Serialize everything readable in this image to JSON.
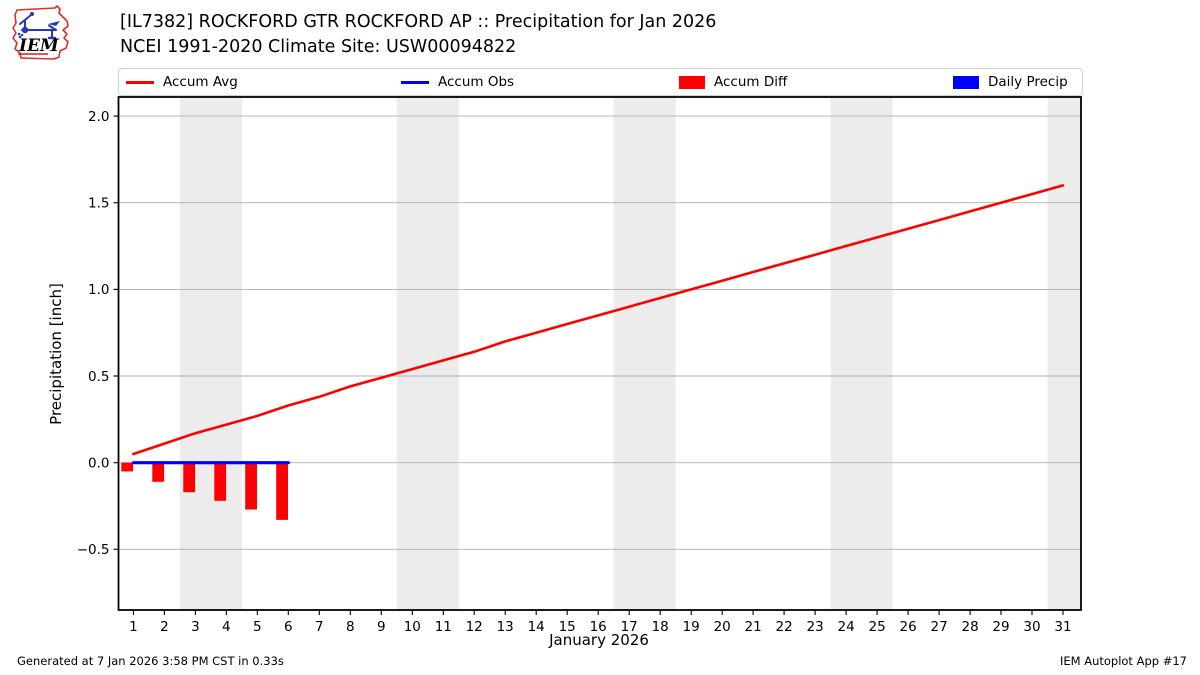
{
  "header": {
    "title": "[IL7382] ROCKFORD GTR ROCKFORD AP :: Precipitation for Jan 2026",
    "subtitle": "NCEI 1991-2020 Climate Site: USW00094822",
    "logo_text": "IEM"
  },
  "legend": {
    "items": [
      {
        "label": "Accum Avg",
        "swatch": "line",
        "color": "#ff0000"
      },
      {
        "label": "Accum Obs",
        "swatch": "line",
        "color": "#0000ff"
      },
      {
        "label": "Accum Diff",
        "swatch": "box",
        "color": "#ff0000"
      },
      {
        "label": "Daily Precip",
        "swatch": "box",
        "color": "#0000ff"
      }
    ]
  },
  "chart_data": {
    "type": "line+bar",
    "xlabel": "January 2026",
    "ylabel": "Precipitation [inch]",
    "xlim": [
      0.52,
      31.58
    ],
    "ylim": [
      -0.85,
      2.11
    ],
    "x_ticks": [
      1,
      2,
      3,
      4,
      5,
      6,
      7,
      8,
      9,
      10,
      11,
      12,
      13,
      14,
      15,
      16,
      17,
      18,
      19,
      20,
      21,
      22,
      23,
      24,
      25,
      26,
      27,
      28,
      29,
      30,
      31
    ],
    "y_ticks": [
      2.0,
      1.5,
      1.0,
      0.5,
      0.0,
      -0.5
    ],
    "y_tick_labels": [
      "2.0",
      "1.5",
      "1.0",
      "0.5",
      "0.0",
      "−0.5"
    ],
    "grid": "horizontal",
    "grid_color": "#b0b0b0",
    "band_color": "#ececec",
    "weekend_bands": [
      [
        2.5,
        4.5
      ],
      [
        9.5,
        11.5
      ],
      [
        16.5,
        18.5
      ],
      [
        23.5,
        25.5
      ],
      [
        30.5,
        31.58
      ]
    ],
    "series": [
      {
        "name": "Accum Avg",
        "type": "line",
        "color": "#ff0000",
        "line_width": 2.6,
        "x": [
          1,
          2,
          3,
          4,
          5,
          6,
          7,
          8,
          9,
          10,
          11,
          12,
          13,
          14,
          15,
          16,
          17,
          18,
          19,
          20,
          21,
          22,
          23,
          24,
          25,
          26,
          27,
          28,
          29,
          30,
          31
        ],
        "values": [
          0.05,
          0.11,
          0.17,
          0.22,
          0.27,
          0.33,
          0.38,
          0.44,
          0.49,
          0.54,
          0.59,
          0.64,
          0.7,
          0.75,
          0.8,
          0.85,
          0.9,
          0.95,
          1.0,
          1.05,
          1.1,
          1.15,
          1.2,
          1.25,
          1.3,
          1.35,
          1.4,
          1.45,
          1.5,
          1.55,
          1.6
        ]
      },
      {
        "name": "Accum Obs",
        "type": "line",
        "color": "#0000ff",
        "line_width": 3.2,
        "x": [
          1,
          2,
          3,
          4,
          5,
          6
        ],
        "values": [
          0,
          0,
          0,
          0,
          0,
          0
        ]
      },
      {
        "name": "Accum Diff",
        "type": "bar",
        "color": "#ff0000",
        "bar_offset": -0.2,
        "bar_width": 0.38,
        "x": [
          1,
          2,
          3,
          4,
          5,
          6
        ],
        "values": [
          -0.05,
          -0.11,
          -0.17,
          -0.22,
          -0.27,
          -0.33
        ]
      },
      {
        "name": "Daily Precip",
        "type": "bar",
        "color": "#0000ff",
        "bar_offset": 0.2,
        "bar_width": 0.38,
        "x": [
          1,
          2,
          3,
          4,
          5,
          6
        ],
        "values": [
          0,
          0,
          0,
          0,
          0,
          0
        ]
      }
    ]
  },
  "footer": {
    "generated": "Generated at 7 Jan 2026 3:58 PM CST in 0.33s",
    "app": "IEM Autoplot App #17"
  }
}
